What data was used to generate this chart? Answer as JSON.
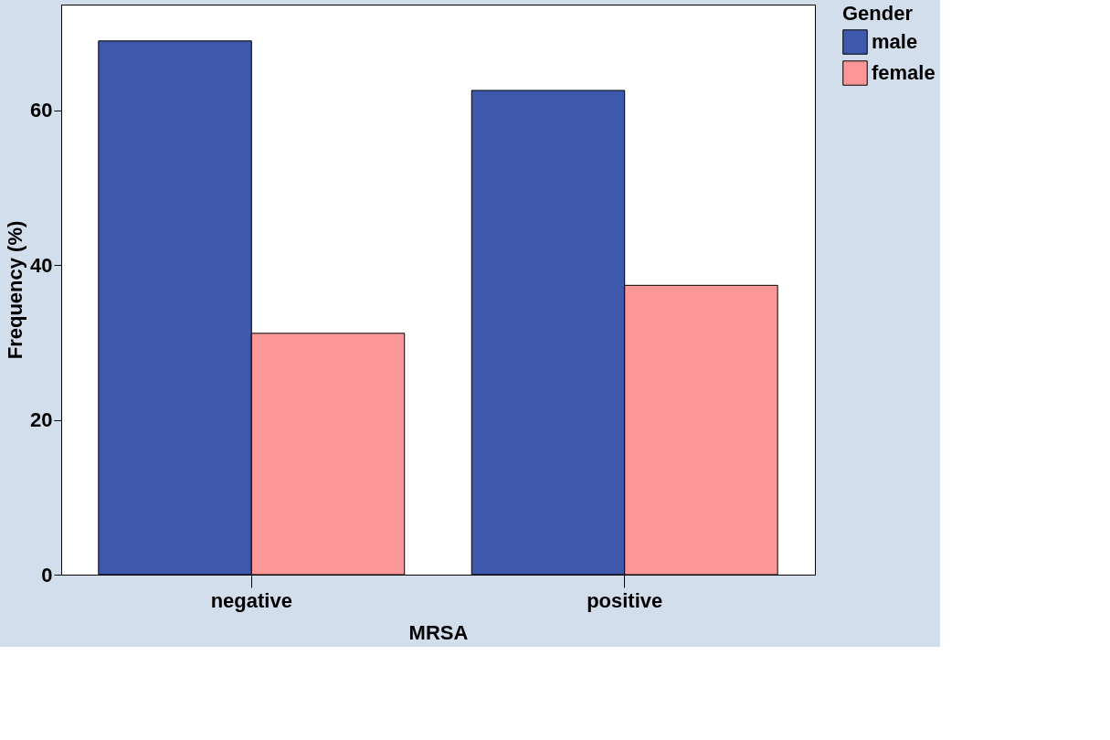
{
  "chart_data": {
    "type": "bar",
    "xlabel": "MRSA",
    "ylabel": "Frequency (%)",
    "legend_title": "Gender",
    "categories": [
      "negative",
      "positive"
    ],
    "series": [
      {
        "name": "male",
        "color": "#3e58ac",
        "values": [
          69,
          62.6
        ]
      },
      {
        "name": "female",
        "color": "#fc9797",
        "values": [
          31.2,
          37.4
        ]
      }
    ],
    "ylim": [
      0,
      73.7
    ],
    "yticks": [
      0,
      20,
      40,
      60
    ],
    "grid": false,
    "legend": "right"
  }
}
